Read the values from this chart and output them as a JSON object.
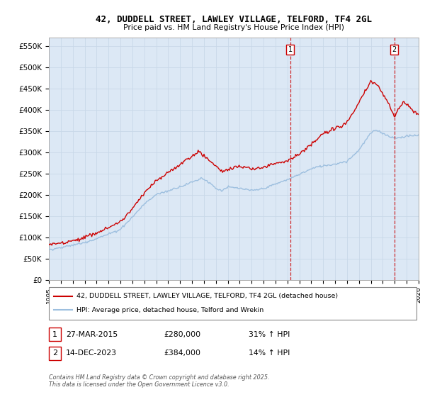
{
  "title": "42, DUDDELL STREET, LAWLEY VILLAGE, TELFORD, TF4 2GL",
  "subtitle": "Price paid vs. HM Land Registry's House Price Index (HPI)",
  "ylabel_ticks": [
    "£0",
    "£50K",
    "£100K",
    "£150K",
    "£200K",
    "£250K",
    "£300K",
    "£350K",
    "£400K",
    "£450K",
    "£500K",
    "£550K"
  ],
  "y_values": [
    0,
    50000,
    100000,
    150000,
    200000,
    250000,
    300000,
    350000,
    400000,
    450000,
    500000,
    550000
  ],
  "x_start_year": 1995,
  "x_end_year": 2026,
  "hpi_color": "#9dbfdf",
  "price_color": "#cc0000",
  "vline_color": "#cc0000",
  "sale1_x": 2015.23,
  "sale2_x": 2023.96,
  "marker1_label": "1",
  "marker2_label": "2",
  "legend_line1": "42, DUDDELL STREET, LAWLEY VILLAGE, TELFORD, TF4 2GL (detached house)",
  "legend_line2": "HPI: Average price, detached house, Telford and Wrekin",
  "annotation1_date": "27-MAR-2015",
  "annotation1_price": "£280,000",
  "annotation1_hpi": "31% ↑ HPI",
  "annotation2_date": "14-DEC-2023",
  "annotation2_price": "£384,000",
  "annotation2_hpi": "14% ↑ HPI",
  "footer": "Contains HM Land Registry data © Crown copyright and database right 2025.\nThis data is licensed under the Open Government Licence v3.0.",
  "bg_color": "#ffffff",
  "grid_color": "#c8d8e8",
  "plot_bg_color": "#dce8f5"
}
